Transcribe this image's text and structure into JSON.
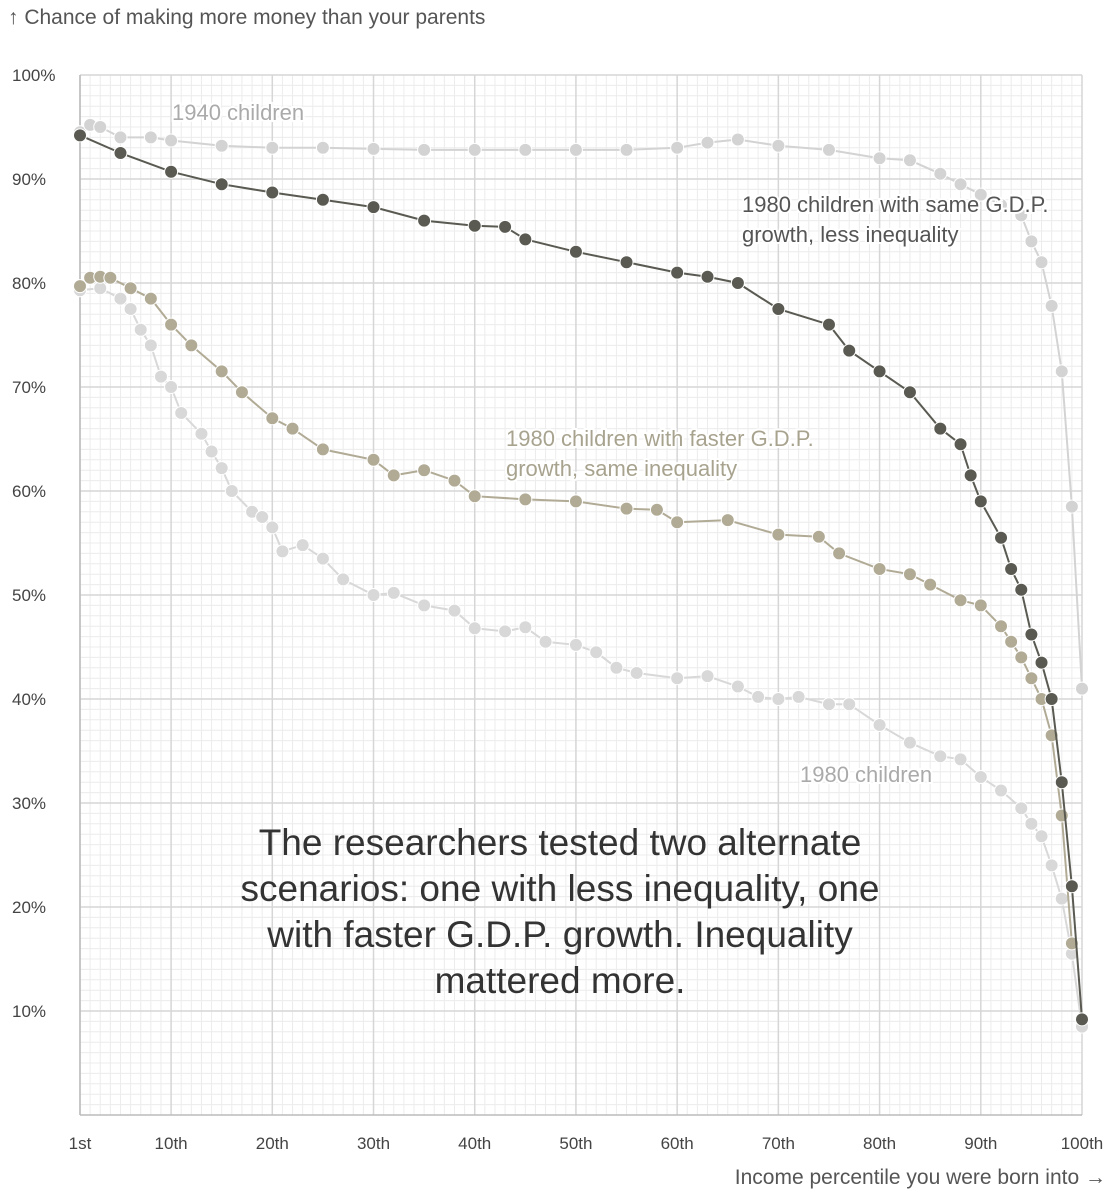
{
  "chart_data": {
    "type": "scatter",
    "ylabel": "↑ Chance of making more money than your parents",
    "xlabel": "Income percentile you were born into →",
    "ylim": [
      0,
      100
    ],
    "xlim": [
      1,
      100
    ],
    "yticks": [
      {
        "value": 10,
        "label": "10%"
      },
      {
        "value": 20,
        "label": "20%"
      },
      {
        "value": 30,
        "label": "30%"
      },
      {
        "value": 40,
        "label": "40%"
      },
      {
        "value": 50,
        "label": "50%"
      },
      {
        "value": 60,
        "label": "60%"
      },
      {
        "value": 70,
        "label": "70%"
      },
      {
        "value": 80,
        "label": "80%"
      },
      {
        "value": 90,
        "label": "90%"
      },
      {
        "value": 100,
        "label": "100%"
      }
    ],
    "xticks": [
      {
        "value": 1,
        "label": "1st"
      },
      {
        "value": 10,
        "label": "10th"
      },
      {
        "value": 20,
        "label": "20th"
      },
      {
        "value": 30,
        "label": "30th"
      },
      {
        "value": 40,
        "label": "40th"
      },
      {
        "value": 50,
        "label": "50th"
      },
      {
        "value": 60,
        "label": "60th"
      },
      {
        "value": 70,
        "label": "70th"
      },
      {
        "value": 80,
        "label": "80th"
      },
      {
        "value": 90,
        "label": "90th"
      },
      {
        "value": 100,
        "label": "100th"
      }
    ],
    "grid": true,
    "annotation": "The researchers tested two alternate scenarios: one with less inequality, one with faster G.D.P. growth. Inequality mattered more.",
    "series": [
      {
        "name": "1940 children",
        "color": "#d3d3d3",
        "label_color": "#aaaaaa",
        "points": [
          [
            1,
            94.5
          ],
          [
            2,
            95.2
          ],
          [
            3,
            95
          ],
          [
            5,
            94
          ],
          [
            8,
            94
          ],
          [
            10,
            93.7
          ],
          [
            15,
            93.2
          ],
          [
            20,
            93
          ],
          [
            25,
            93
          ],
          [
            30,
            92.9
          ],
          [
            35,
            92.8
          ],
          [
            40,
            92.8
          ],
          [
            45,
            92.8
          ],
          [
            50,
            92.8
          ],
          [
            55,
            92.8
          ],
          [
            60,
            93
          ],
          [
            63,
            93.5
          ],
          [
            66,
            93.8
          ],
          [
            70,
            93.2
          ],
          [
            75,
            92.8
          ],
          [
            80,
            92
          ],
          [
            83,
            91.8
          ],
          [
            86,
            90.5
          ],
          [
            88,
            89.5
          ],
          [
            90,
            88.5
          ],
          [
            92,
            87.5
          ],
          [
            94,
            86.5
          ],
          [
            95,
            84
          ],
          [
            96,
            82
          ],
          [
            97,
            77.8
          ],
          [
            98,
            71.5
          ],
          [
            99,
            58.5
          ],
          [
            100,
            41
          ]
        ]
      },
      {
        "name": "1980 children with same G.D.P. growth, less inequality",
        "color": "#5a5a52",
        "label_color": "#555555",
        "points": [
          [
            1,
            94.2
          ],
          [
            5,
            92.5
          ],
          [
            10,
            90.7
          ],
          [
            15,
            89.5
          ],
          [
            20,
            88.7
          ],
          [
            25,
            88
          ],
          [
            30,
            87.3
          ],
          [
            35,
            86
          ],
          [
            40,
            85.5
          ],
          [
            43,
            85.4
          ],
          [
            45,
            84.2
          ],
          [
            50,
            83
          ],
          [
            55,
            82
          ],
          [
            60,
            81
          ],
          [
            63,
            80.6
          ],
          [
            66,
            80
          ],
          [
            70,
            77.5
          ],
          [
            75,
            76
          ],
          [
            77,
            73.5
          ],
          [
            80,
            71.5
          ],
          [
            83,
            69.5
          ],
          [
            86,
            66
          ],
          [
            88,
            64.5
          ],
          [
            89,
            61.5
          ],
          [
            90,
            59
          ],
          [
            92,
            55.5
          ],
          [
            93,
            52.5
          ],
          [
            94,
            50.5
          ],
          [
            95,
            46.2
          ],
          [
            96,
            43.5
          ],
          [
            97,
            40
          ],
          [
            98,
            32
          ],
          [
            99,
            22
          ],
          [
            100,
            9.2
          ]
        ]
      },
      {
        "name": "1980 children with faster G.D.P. growth, same inequality",
        "color": "#b1ab96",
        "label_color": "#a8a38f",
        "points": [
          [
            1,
            79.7
          ],
          [
            2,
            80.5
          ],
          [
            3,
            80.6
          ],
          [
            4,
            80.5
          ],
          [
            6,
            79.5
          ],
          [
            8,
            78.5
          ],
          [
            10,
            76
          ],
          [
            12,
            74
          ],
          [
            15,
            71.5
          ],
          [
            17,
            69.5
          ],
          [
            20,
            67
          ],
          [
            22,
            66
          ],
          [
            25,
            64
          ],
          [
            30,
            63
          ],
          [
            32,
            61.5
          ],
          [
            35,
            62
          ],
          [
            38,
            61
          ],
          [
            40,
            59.5
          ],
          [
            45,
            59.2
          ],
          [
            50,
            59
          ],
          [
            55,
            58.3
          ],
          [
            58,
            58.2
          ],
          [
            60,
            57
          ],
          [
            65,
            57.2
          ],
          [
            70,
            55.8
          ],
          [
            74,
            55.6
          ],
          [
            76,
            54
          ],
          [
            80,
            52.5
          ],
          [
            83,
            52
          ],
          [
            85,
            51
          ],
          [
            88,
            49.5
          ],
          [
            90,
            49
          ],
          [
            92,
            47
          ],
          [
            93,
            45.5
          ],
          [
            94,
            44
          ],
          [
            95,
            42
          ],
          [
            96,
            40
          ],
          [
            97,
            36.5
          ],
          [
            98,
            28.8
          ],
          [
            99,
            16.5
          ]
        ]
      },
      {
        "name": "1980 children",
        "color": "#d8d8d8",
        "label_color": "#aaaaaa",
        "points": [
          [
            1,
            79.3
          ],
          [
            3,
            79.5
          ],
          [
            5,
            78.5
          ],
          [
            6,
            77.5
          ],
          [
            7,
            75.5
          ],
          [
            8,
            74
          ],
          [
            9,
            71
          ],
          [
            10,
            70
          ],
          [
            11,
            67.5
          ],
          [
            13,
            65.5
          ],
          [
            14,
            63.8
          ],
          [
            15,
            62.2
          ],
          [
            16,
            60
          ],
          [
            18,
            58
          ],
          [
            19,
            57.5
          ],
          [
            20,
            56.5
          ],
          [
            21,
            54.2
          ],
          [
            23,
            54.8
          ],
          [
            25,
            53.5
          ],
          [
            27,
            51.5
          ],
          [
            30,
            50
          ],
          [
            32,
            50.2
          ],
          [
            35,
            49
          ],
          [
            38,
            48.5
          ],
          [
            40,
            46.8
          ],
          [
            43,
            46.5
          ],
          [
            45,
            46.9
          ],
          [
            47,
            45.5
          ],
          [
            50,
            45.2
          ],
          [
            52,
            44.5
          ],
          [
            54,
            43
          ],
          [
            56,
            42.5
          ],
          [
            60,
            42
          ],
          [
            63,
            42.2
          ],
          [
            66,
            41.2
          ],
          [
            68,
            40.2
          ],
          [
            70,
            40
          ],
          [
            72,
            40.2
          ],
          [
            75,
            39.5
          ],
          [
            77,
            39.5
          ],
          [
            80,
            37.5
          ],
          [
            83,
            35.8
          ],
          [
            86,
            34.5
          ],
          [
            88,
            34.2
          ],
          [
            90,
            32.5
          ],
          [
            92,
            31.2
          ],
          [
            94,
            29.5
          ],
          [
            95,
            28
          ],
          [
            96,
            26.8
          ],
          [
            97,
            24
          ],
          [
            98,
            20.8
          ],
          [
            99,
            15.5
          ],
          [
            100,
            8.5
          ]
        ]
      }
    ]
  }
}
